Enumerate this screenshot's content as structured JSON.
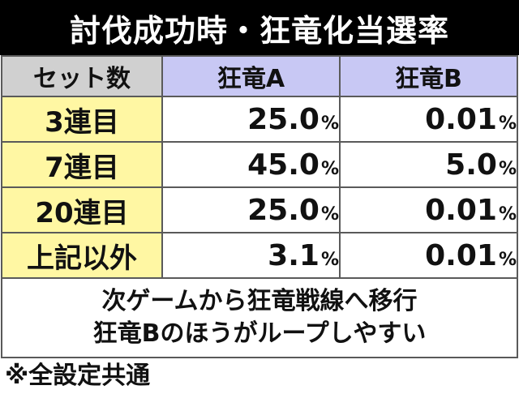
{
  "title": "討伐成功時・狂竜化当選率",
  "table": {
    "corner_label": "セット数",
    "columns": [
      "狂竜A",
      "狂竜B"
    ],
    "rows": [
      {
        "label": "3連目",
        "a": "25.0",
        "b": "0.01"
      },
      {
        "label": "7連目",
        "a": "45.0",
        "b": "5.0"
      },
      {
        "label": "20連目",
        "a": "25.0",
        "b": "0.01"
      },
      {
        "label": "上記以外",
        "a": "3.1",
        "b": "0.01"
      }
    ],
    "unit": "%",
    "note_line1": "次ゲームから狂竜戦線へ移行",
    "note_line2": "狂竜Bのほうがループしやすい"
  },
  "footnote": "※全設定共通"
}
